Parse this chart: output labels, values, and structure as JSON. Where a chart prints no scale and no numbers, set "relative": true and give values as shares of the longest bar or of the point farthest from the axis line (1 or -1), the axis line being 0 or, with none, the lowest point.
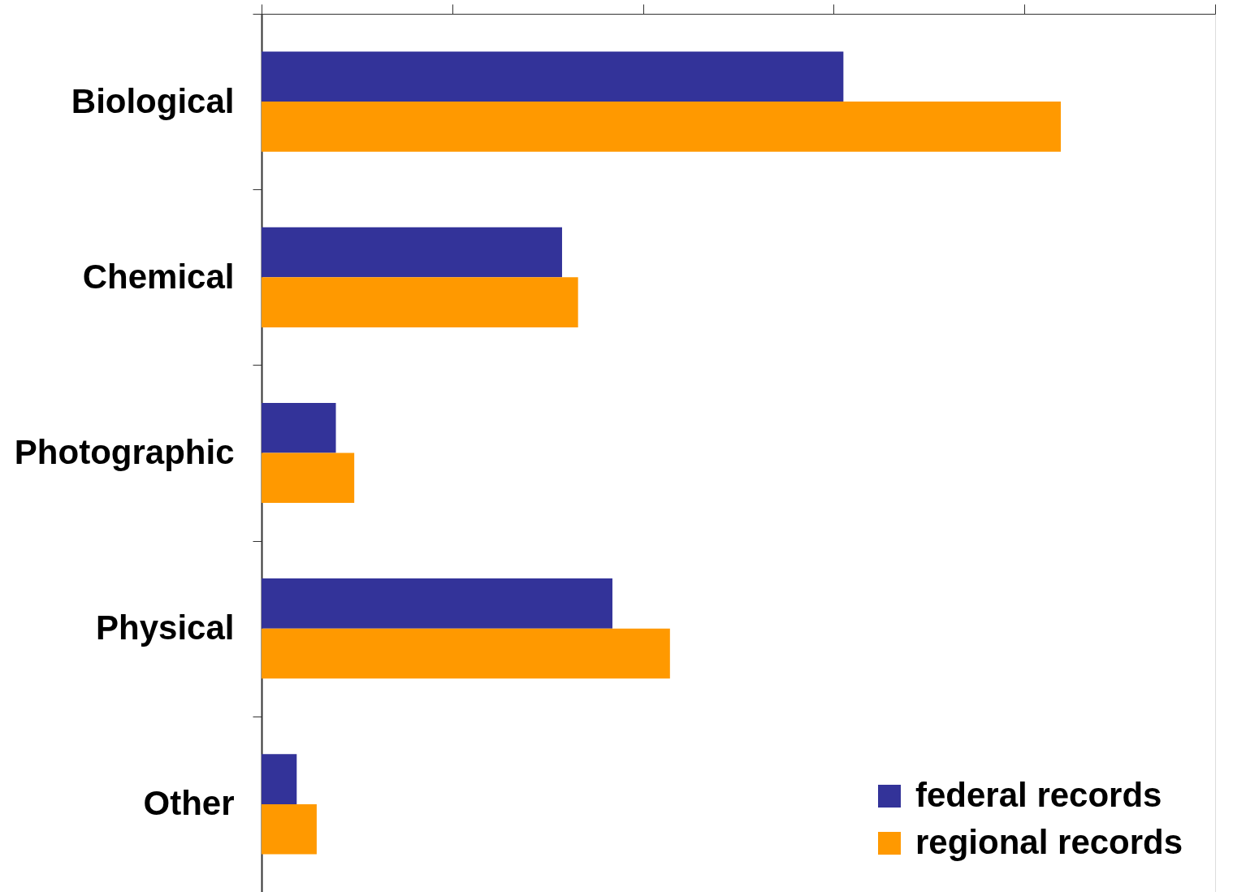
{
  "chart_data": {
    "type": "bar",
    "orientation": "horizontal",
    "relative": true,
    "categories": [
      "Biological",
      "Chemical",
      "Photographic",
      "Physical",
      "Other"
    ],
    "series": [
      {
        "name": "federal records",
        "color": "#333399",
        "values": [
          0.728,
          0.376,
          0.093,
          0.439,
          0.044
        ]
      },
      {
        "name": "regional records",
        "color": "#ff9900",
        "values": [
          1,
          0.396,
          0.116,
          0.511,
          0.069
        ]
      }
    ],
    "legend": "bottom right"
  }
}
